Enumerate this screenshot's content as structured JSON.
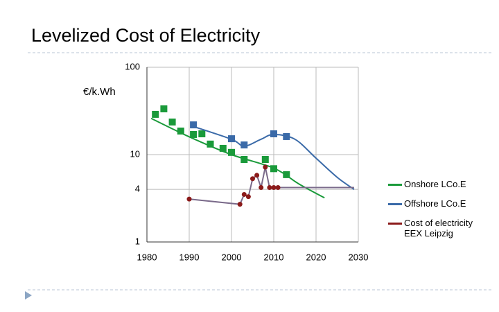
{
  "chart_data": {
    "type": "scatter",
    "title": "Levelized Cost of Electricity",
    "y_label": "€/k.Wh",
    "log_y": true,
    "grid": true,
    "xlim": [
      1980,
      2030
    ],
    "xticks": [
      1980,
      1990,
      2000,
      2010,
      2020,
      2030
    ],
    "ylim": [
      1,
      100
    ],
    "yticks": [
      1,
      4,
      10,
      100
    ],
    "series": [
      {
        "name": "Onshore LCo.E",
        "color": "#1a9a3a",
        "marker": "square",
        "x": [
          1982,
          1984,
          1986,
          1988,
          1991,
          1993,
          1995,
          1998,
          2000,
          2003,
          2008,
          2010,
          2013
        ],
        "values": [
          28.9,
          33.4,
          23.6,
          18.6,
          17.0,
          17.3,
          13.2,
          11.8,
          10.6,
          8.8,
          8.8,
          6.9,
          5.9
        ],
        "trend": {
          "x": [
            1981,
            1990,
            2000,
            2010,
            2016,
            2022
          ],
          "values": [
            26,
            16,
            10,
            7,
            4.6,
            3.2
          ]
        }
      },
      {
        "name": "Offshore LCo.E",
        "color": "#3a6aa8",
        "marker": "square",
        "x": [
          1991,
          2000,
          2003,
          2010,
          2013
        ],
        "values": [
          21.9,
          15.2,
          12.9,
          17.3,
          16.1
        ],
        "trend": {
          "x": [
            1991,
            2000,
            2003,
            2007,
            2010,
            2015,
            2020,
            2025,
            2029
          ],
          "values": [
            21,
            15,
            12.5,
            15,
            17,
            15,
            9.1,
            5.5,
            4
          ]
        }
      },
      {
        "name": "Cost of electricity EEX Leipzig",
        "color": "#8b1a1a",
        "line_color": "#7a6a8a",
        "marker": "circle",
        "x": [
          1990,
          2002,
          2003,
          2004,
          2005,
          2006,
          2007,
          2008,
          2009,
          2010,
          2011
        ],
        "values": [
          3.1,
          2.7,
          3.5,
          3.3,
          5.3,
          5.8,
          4.2,
          7.2,
          4.2,
          4.2,
          4.2
        ],
        "trend": {
          "x": [
            2011,
            2029
          ],
          "values": [
            4.2,
            4.2
          ]
        }
      }
    ]
  }
}
